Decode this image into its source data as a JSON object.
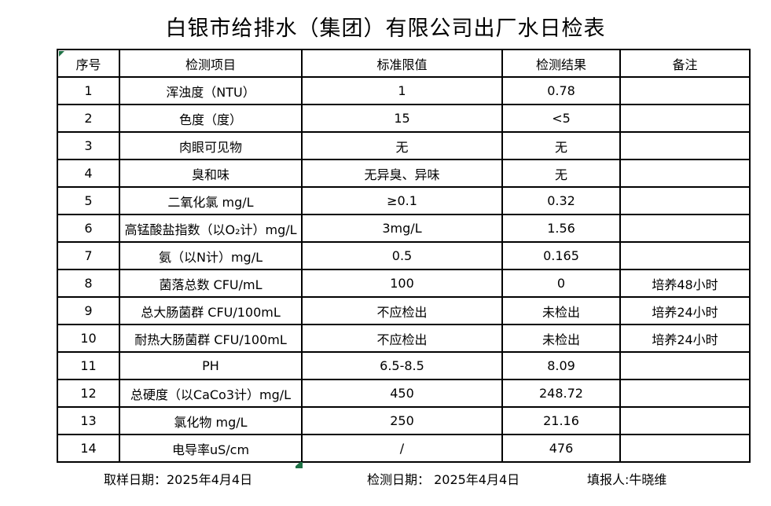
{
  "title": "白银市给排水（集团）有限公司出厂水日检表",
  "table": {
    "headers": [
      "序号",
      "检测项目",
      "标准限值",
      "检测结果",
      "备注"
    ],
    "rows": [
      {
        "no": "1",
        "item": "浑浊度（NTU）",
        "limit": "1",
        "result": "0.78",
        "remark": ""
      },
      {
        "no": "2",
        "item": "色度（度）",
        "limit": "15",
        "result": "<5",
        "remark": ""
      },
      {
        "no": "3",
        "item": "肉眼可见物",
        "limit": "无",
        "result": "无",
        "remark": ""
      },
      {
        "no": "4",
        "item": "臭和味",
        "limit": "无异臭、异味",
        "result": "无",
        "remark": ""
      },
      {
        "no": "5",
        "item": "二氧化氯 mg/L",
        "limit": "≥0.1",
        "result": "0.32",
        "remark": ""
      },
      {
        "no": "6",
        "item": "高锰酸盐指数（以O₂计）mg/L",
        "limit": "3mg/L",
        "result": "1.56",
        "remark": ""
      },
      {
        "no": "7",
        "item": "氨（以N计）mg/L",
        "limit": "0.5",
        "result": "0.165",
        "remark": ""
      },
      {
        "no": "8",
        "item": "菌落总数 CFU/mL",
        "limit": "100",
        "result": "0",
        "remark": "培养48小时"
      },
      {
        "no": "9",
        "item": "总大肠菌群 CFU/100mL",
        "limit": "不应检出",
        "result": "未检出",
        "remark": "培养24小时"
      },
      {
        "no": "10",
        "item": "耐热大肠菌群 CFU/100mL",
        "limit": "不应检出",
        "result": "未检出",
        "remark": "培养24小时"
      },
      {
        "no": "11",
        "item": "PH",
        "limit": "6.5-8.5",
        "result": "8.09",
        "remark": ""
      },
      {
        "no": "12",
        "item": "总硬度（以CaCo3计）mg/L",
        "limit": "450",
        "result": "248.72",
        "remark": ""
      },
      {
        "no": "13",
        "item": "氯化物 mg/L",
        "limit": "250",
        "result": "21.16",
        "remark": ""
      },
      {
        "no": "14",
        "item": "电导率uS/cm",
        "limit": "/",
        "result": "476",
        "remark": ""
      }
    ]
  },
  "footer": {
    "sample_date": "取样日期：2025年4月4日",
    "test_date": "检测日期： 2025年4月4日",
    "reporter": "填报人:牛晓维"
  },
  "colors": {
    "marker_green": "#1e7145",
    "border": "#000000",
    "background": "#ffffff"
  }
}
